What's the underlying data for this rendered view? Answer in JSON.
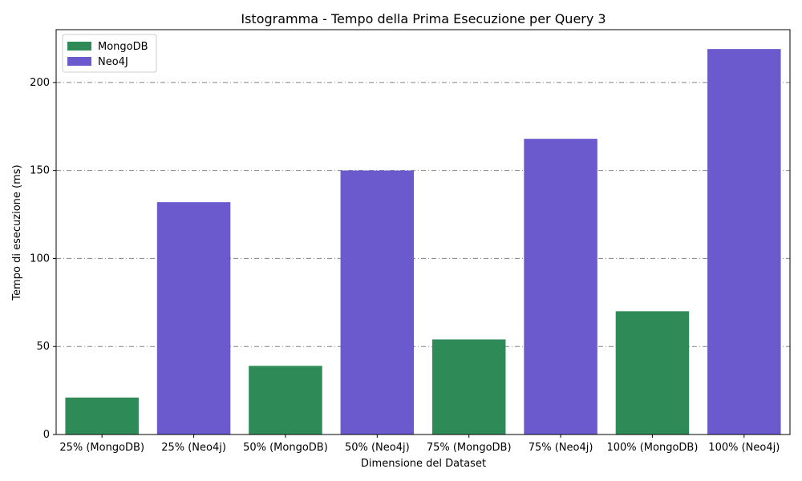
{
  "chart_data": {
    "type": "bar",
    "title": "Istogramma - Tempo della Prima Esecuzione per Query 3",
    "xlabel": "Dimensione del Dataset",
    "ylabel": "Tempo di esecuzione (ms)",
    "ylim": [
      0,
      230
    ],
    "yticks": [
      0,
      50,
      100,
      150,
      200
    ],
    "grid": "horizontal dash-dot",
    "legend_position": "top-left",
    "categories": [
      "25% (MongoDB)",
      "25% (Neo4j)",
      "50% (MongoDB)",
      "50% (Neo4j)",
      "75% (MongoDB)",
      "75% (Neo4j)",
      "100% (MongoDB)",
      "100% (Neo4j)"
    ],
    "values": [
      21,
      132,
      39,
      150,
      54,
      168,
      70,
      219
    ],
    "bar_series": [
      "MongoDB",
      "Neo4J",
      "MongoDB",
      "Neo4J",
      "MongoDB",
      "Neo4J",
      "MongoDB",
      "Neo4J"
    ],
    "series": [
      {
        "name": "MongoDB",
        "color": "#2e8b57"
      },
      {
        "name": "Neo4J",
        "color": "#6a5acd"
      }
    ]
  }
}
